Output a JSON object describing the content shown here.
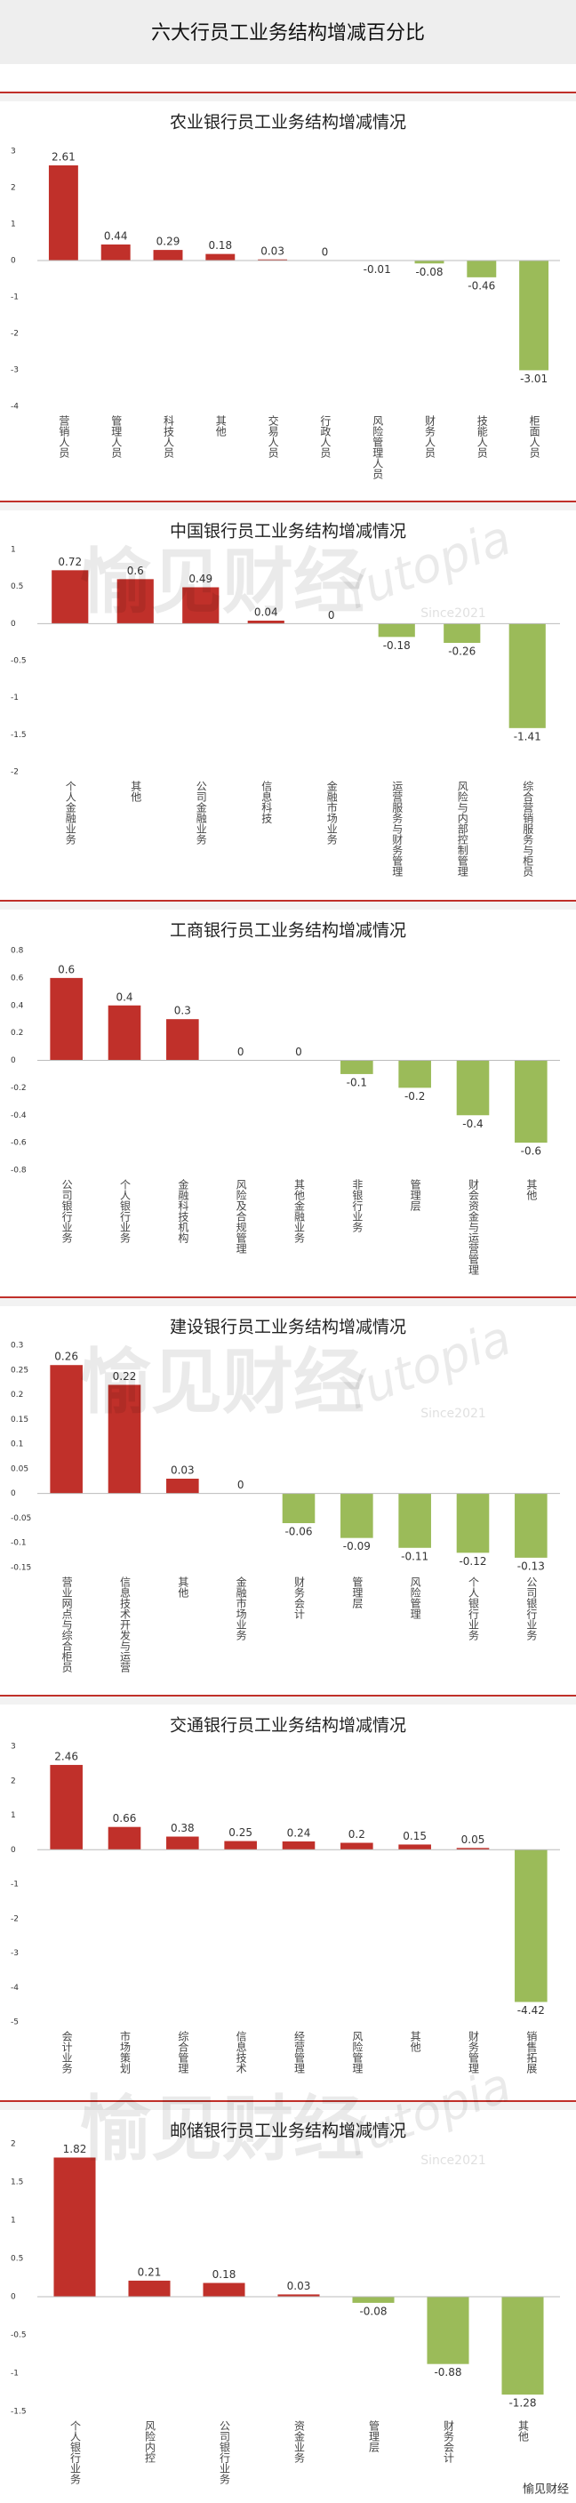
{
  "title": "六大行员工业务结构增减百分比",
  "watermark": {
    "brand": "愉见财经",
    "latin": "Yutopia",
    "since": "Since2021"
  },
  "chart_data": [
    {
      "type": "bar",
      "title": "农业银行员工业务结构增减情况",
      "categories": [
        "营销人员",
        "管理人员",
        "科技人员",
        "其他",
        "交易人员",
        "行政人员",
        "风险管理人员",
        "财务人员",
        "技能人员",
        "柜面人员"
      ],
      "values": [
        2.61,
        0.44,
        0.29,
        0.18,
        0.03,
        0,
        -0.01,
        -0.08,
        -0.46,
        -3.01
      ],
      "color": "#c0302a",
      "negative_color": "#9bbb59",
      "grid": false,
      "ylim": [
        -4,
        3
      ],
      "yticks": [
        -4,
        -3,
        -2,
        -1,
        0,
        1,
        2,
        3
      ]
    },
    {
      "type": "bar",
      "title": "中国银行员工业务结构增减情况",
      "categories": [
        "个人金融业务",
        "其他",
        "公司金融业务",
        "信息科技",
        "金融市场业务",
        "运营服务与财务管理",
        "风险与内部控制管理",
        "综合营销服务与柜员"
      ],
      "values": [
        0.72,
        0.6,
        0.49,
        0.04,
        0,
        -0.18,
        -0.26,
        -1.41
      ],
      "color": "#c0302a",
      "negative_color": "#9bbb59",
      "grid": false,
      "ylim": [
        -2,
        1
      ],
      "yticks": [
        -2,
        -1.5,
        -1,
        -0.5,
        0,
        0.5,
        1
      ]
    },
    {
      "type": "bar",
      "title": "工商银行员工业务结构增减情况",
      "categories": [
        "公司银行业务",
        "个人银行业务",
        "金融科技机构",
        "风险及合规管理",
        "其他金融业务",
        "非银行业务",
        "管理层",
        "财会资金与运营管理",
        "其他"
      ],
      "values": [
        0.6,
        0.4,
        0.3,
        0,
        0,
        -0.1,
        -0.2,
        -0.4,
        -0.6
      ],
      "color": "#c0302a",
      "negative_color": "#9bbb59",
      "grid": false,
      "ylim": [
        -0.8,
        0.8
      ],
      "yticks": [
        -0.8,
        -0.6,
        -0.4,
        -0.2,
        0,
        0.2,
        0.4,
        0.6,
        0.8
      ]
    },
    {
      "type": "bar",
      "title": "建设银行员工业务结构增减情况",
      "categories": [
        "营业网点与综合柜员",
        "信息技术开发与运营",
        "其他",
        "金融市场业务",
        "财务会计",
        "管理层",
        "风险管理",
        "个人银行业务",
        "公司银行业务"
      ],
      "values": [
        0.26,
        0.22,
        0.03,
        0,
        -0.06,
        -0.09,
        -0.11,
        -0.12,
        -0.13
      ],
      "color": "#c0302a",
      "negative_color": "#9bbb59",
      "grid": false,
      "ylim": [
        -0.15,
        0.3
      ],
      "yticks": [
        -0.15,
        -0.1,
        -0.05,
        0,
        0.05,
        0.1,
        0.15,
        0.2,
        0.25,
        0.3
      ]
    },
    {
      "type": "bar",
      "title": "交通银行员工业务结构增减情况",
      "categories": [
        "会计业务",
        "市场策划",
        "综合管理",
        "信息技术",
        "经营管理",
        "风险管理",
        "其他",
        "财务管理",
        "销售拓展"
      ],
      "values": [
        2.46,
        0.66,
        0.38,
        0.25,
        0.24,
        0.2,
        0.15,
        0.05,
        -4.42
      ],
      "color": "#c0302a",
      "negative_color": "#9bbb59",
      "grid": false,
      "ylim": [
        -5,
        3
      ],
      "yticks": [
        -5,
        -4,
        -3,
        -2,
        -1,
        0,
        1,
        2,
        3
      ]
    },
    {
      "type": "bar",
      "title": "邮储银行员工业务结构增减情况",
      "categories": [
        "个人银行业务",
        "风险内控",
        "公司银行业务",
        "资金业务",
        "管理层",
        "财务会计",
        "其他"
      ],
      "values": [
        1.82,
        0.21,
        0.18,
        0.03,
        -0.08,
        -0.88,
        -1.28
      ],
      "color": "#c0302a",
      "negative_color": "#9bbb59",
      "grid": false,
      "ylim": [
        -1.5,
        2
      ],
      "yticks": [
        -1.5,
        -1,
        -0.5,
        0,
        0.5,
        1,
        1.5,
        2
      ]
    }
  ]
}
